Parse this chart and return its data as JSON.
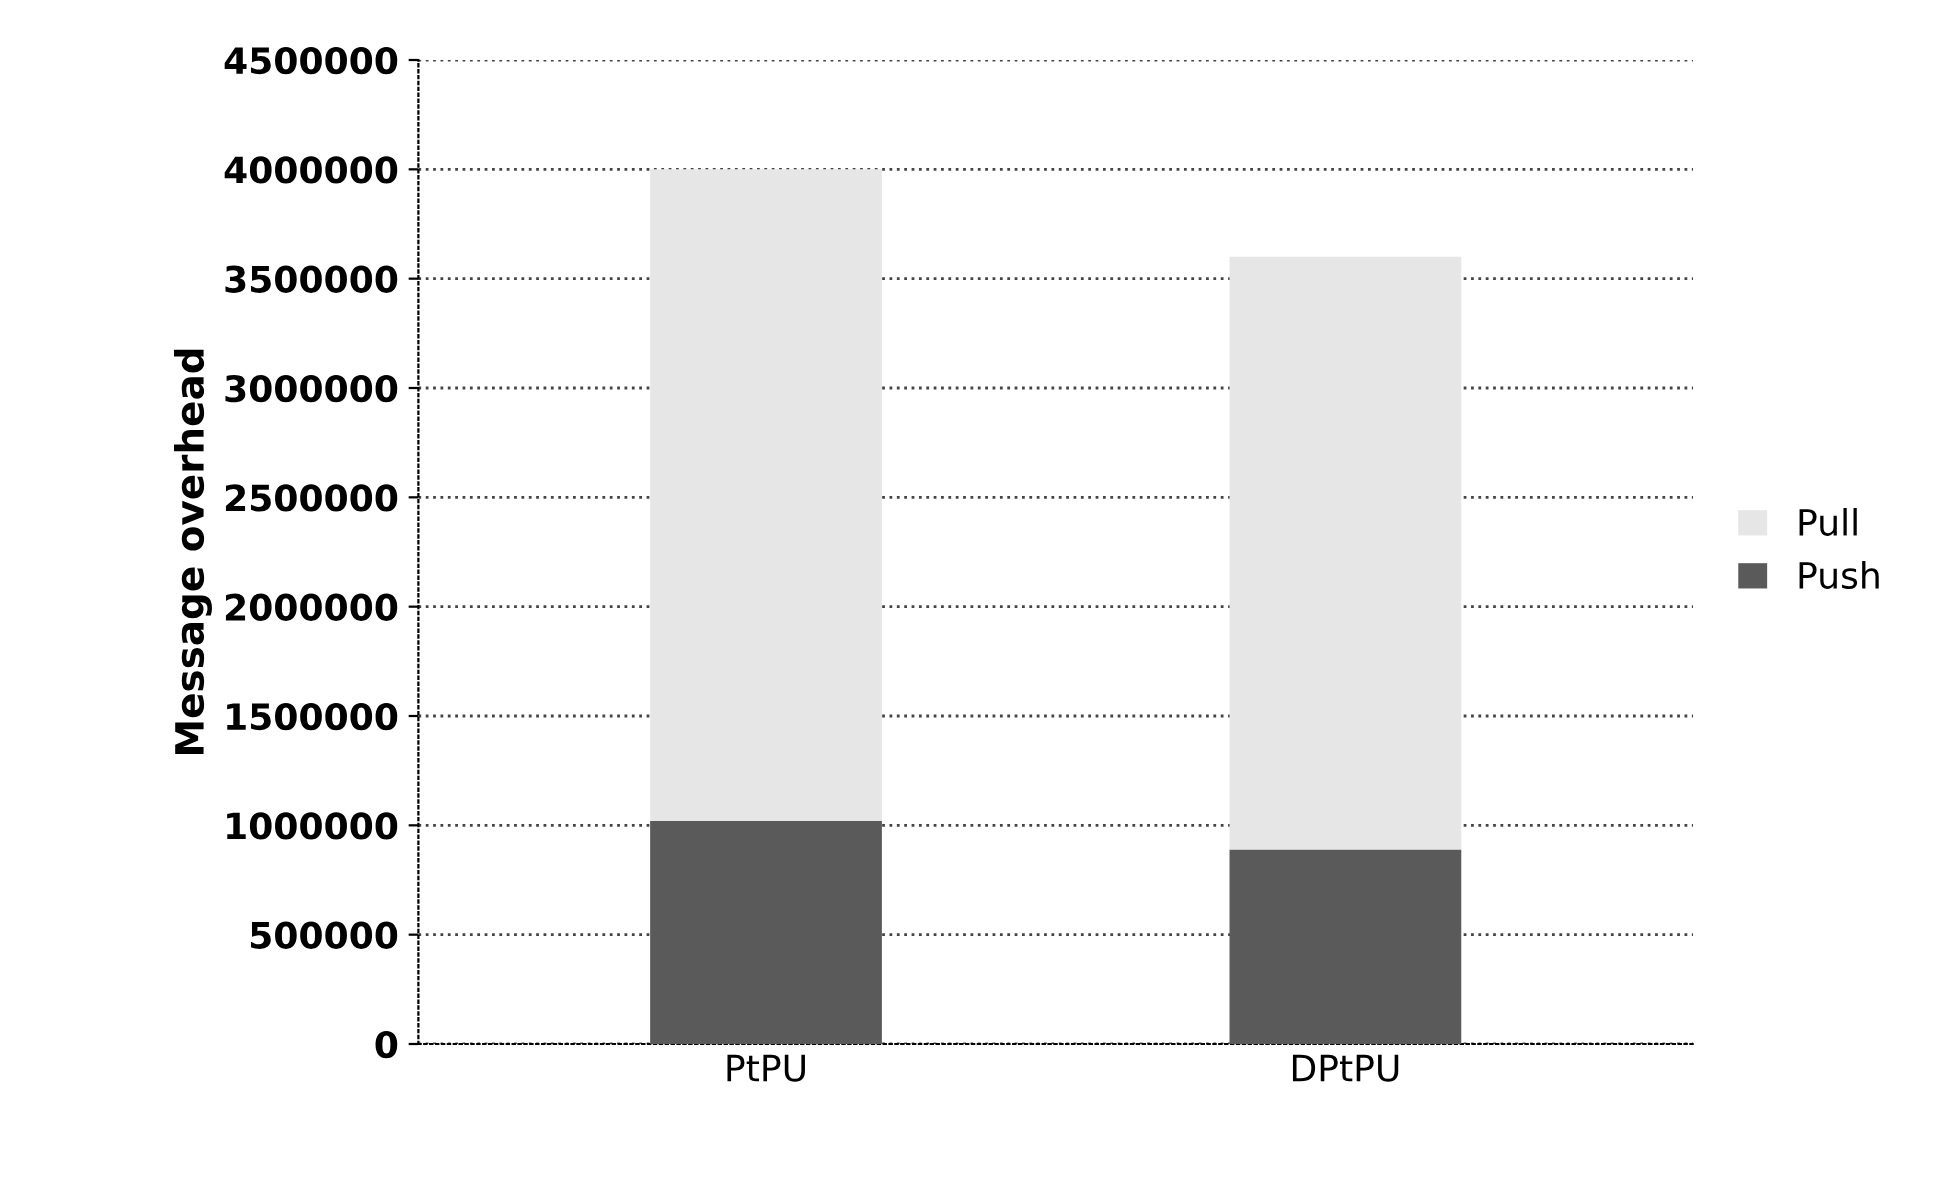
{
  "chart_data": {
    "type": "bar",
    "stacked": true,
    "ylabel": "Message overhead",
    "categories": [
      "PtPU",
      "DPtPU"
    ],
    "series": [
      {
        "name": "Push",
        "color": "#5a5a5a",
        "values": [
          1020000,
          890000
        ]
      },
      {
        "name": "Pull",
        "color": "#e6e6e6",
        "values": [
          2980000,
          2710000
        ]
      }
    ],
    "ylim": [
      0,
      4500000
    ],
    "yticks": [
      0,
      500000,
      1000000,
      1500000,
      2000000,
      2500000,
      3000000,
      3500000,
      4000000,
      4500000
    ],
    "grid": "y",
    "legend": "right"
  }
}
